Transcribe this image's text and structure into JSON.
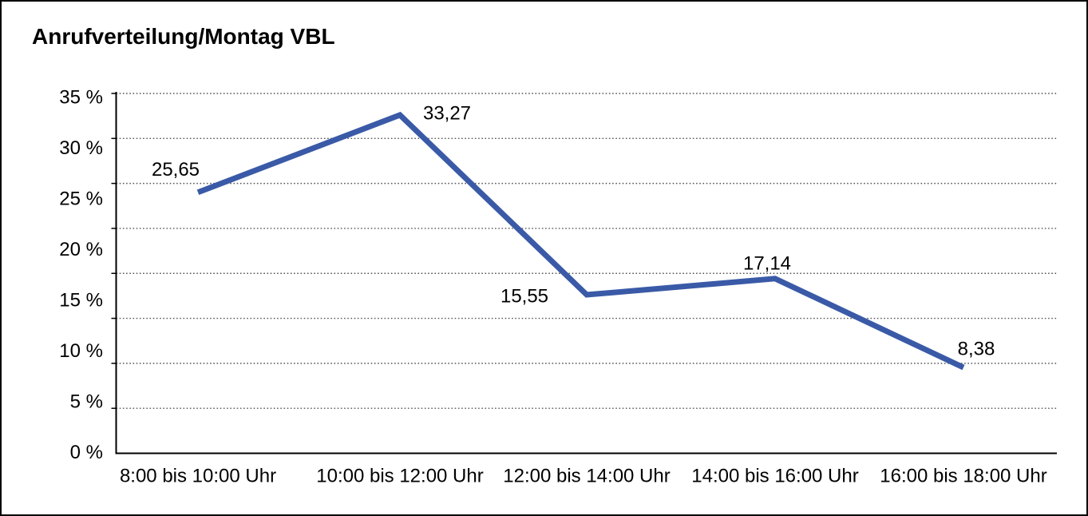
{
  "chart": {
    "title": "Anrufverteilung/Montag VBL"
  },
  "chart_data": {
    "type": "line",
    "title": "Anrufverteilung/Montag VBL",
    "categories": [
      "8:00 bis 10:00 Uhr",
      "10:00 bis 12:00 Uhr",
      "12:00 bis 14:00 Uhr",
      "14:00 bis 16:00 Uhr",
      "16:00 bis 18:00 Uhr"
    ],
    "values": [
      25.65,
      33.27,
      15.55,
      17.14,
      8.38
    ],
    "value_labels": [
      "25,65",
      "33,27",
      "15,55",
      "17,14",
      "8,38"
    ],
    "unit": "%",
    "xlabel": "",
    "ylabel": "",
    "ylim": [
      0,
      35
    ],
    "ytick_step": 5,
    "ytick_labels": [
      "0 %",
      "5 %",
      "10 %",
      "15 %",
      "20 %",
      "25 %",
      "30 %",
      "35 %"
    ],
    "grid": "horizontal-dotted",
    "legend": "none",
    "line_color": "#3A5AA7",
    "axis_color": "#000000",
    "grid_color": "#555555",
    "text_color": "#000000"
  }
}
